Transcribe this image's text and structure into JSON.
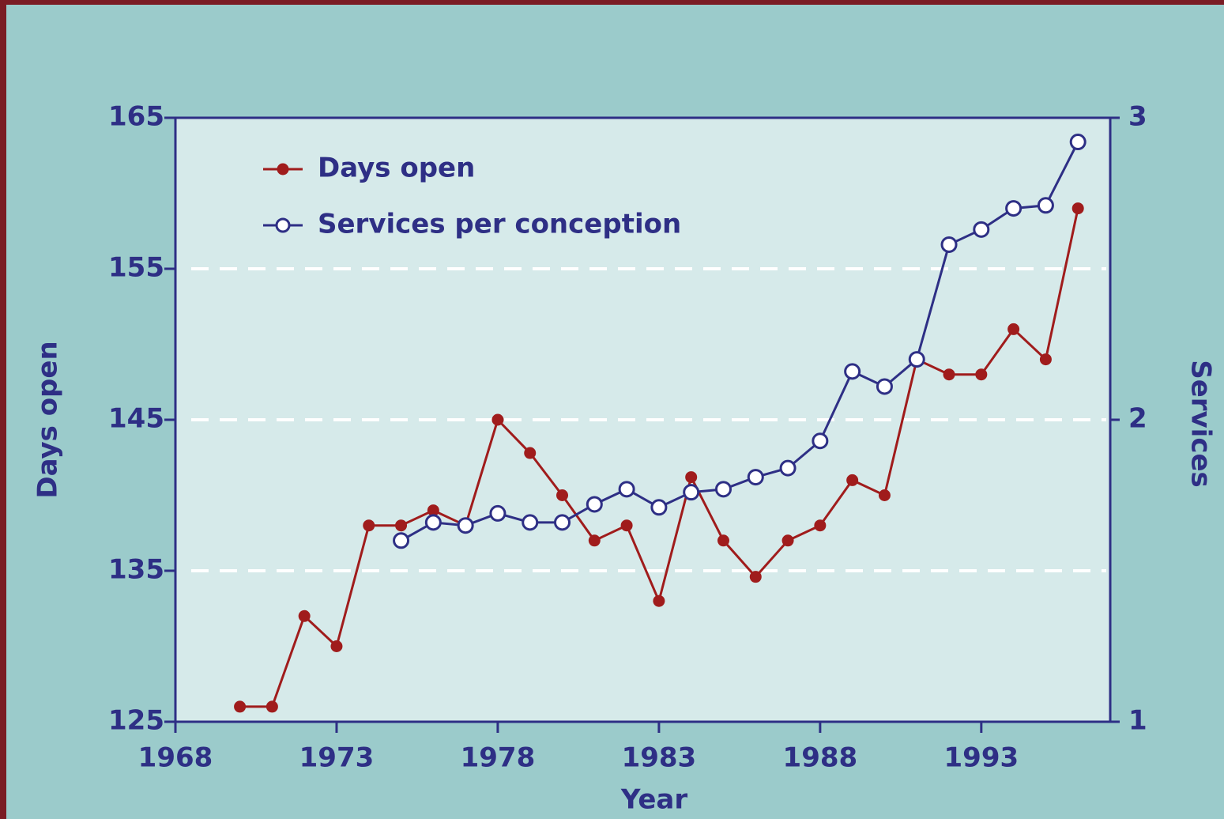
{
  "chart_data": {
    "type": "line",
    "x": [
      1970,
      1971,
      1972,
      1973,
      1974,
      1975,
      1976,
      1977,
      1978,
      1979,
      1980,
      1981,
      1982,
      1983,
      1984,
      1985,
      1986,
      1987,
      1988,
      1989,
      1990,
      1991,
      1992,
      1993,
      1994,
      1995,
      1996
    ],
    "series": [
      {
        "name": "Days open",
        "color": "#a01c1c",
        "marker": "filled",
        "values": [
          126,
          126,
          132,
          130,
          138,
          138,
          139,
          138,
          145,
          142.8,
          140,
          137,
          138,
          133,
          141.2,
          137,
          134.6,
          137,
          138,
          141,
          140,
          149,
          148,
          148,
          151,
          149,
          159
        ]
      },
      {
        "name": "Services per conception",
        "color": "#2e2f85",
        "marker": "open",
        "axis": "y2",
        "values": [
          null,
          null,
          null,
          null,
          null,
          1.6,
          1.66,
          1.65,
          1.69,
          1.66,
          1.66,
          1.72,
          1.77,
          1.71,
          1.76,
          1.77,
          1.81,
          1.84,
          1.93,
          2.16,
          2.11,
          2.2,
          2.58,
          2.63,
          2.7,
          2.71,
          2.92
        ]
      }
    ],
    "xlabel": "Year",
    "ylabel": "Days open",
    "y2label": "Services",
    "xlim": [
      1968,
      1997
    ],
    "xticks": [
      1968,
      1973,
      1978,
      1983,
      1988,
      1993
    ],
    "ylim": [
      125,
      165
    ],
    "yticks": [
      125,
      135,
      145,
      155,
      165
    ],
    "y2lim": [
      1,
      3
    ],
    "y2ticks": [
      1,
      2,
      3
    ],
    "grid": true,
    "legend": "upper left"
  }
}
